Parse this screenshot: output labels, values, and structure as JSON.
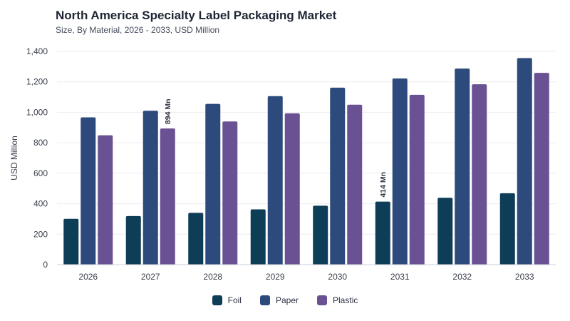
{
  "chart_data": {
    "type": "bar",
    "title": "North America Specialty Label Packaging Market",
    "subtitle": "Size, By Material, 2026 - 2033, USD Million",
    "ylabel": "USD Million",
    "xlabel": "",
    "ylim": [
      0,
      1400
    ],
    "yticks": [
      "0",
      "200",
      "400",
      "600",
      "800",
      "1,000",
      "1,200",
      "1,400"
    ],
    "categories": [
      "2026",
      "2027",
      "2028",
      "2029",
      "2030",
      "2031",
      "2032",
      "2033"
    ],
    "series": [
      {
        "name": "Foil",
        "color": "#0e3d57",
        "values": [
          301,
          319,
          340,
          363,
          387,
          414,
          439,
          469
        ]
      },
      {
        "name": "Paper",
        "color": "#2d4a7c",
        "values": [
          967,
          1010,
          1055,
          1106,
          1162,
          1222,
          1287,
          1356
        ]
      },
      {
        "name": "Plastic",
        "color": "#6a5193",
        "values": [
          849,
          894,
          940,
          993,
          1050,
          1115,
          1184,
          1259
        ]
      }
    ],
    "annotations": [
      {
        "text": "894 Mn",
        "series": 2,
        "category": 1
      },
      {
        "text": "414 Mn",
        "series": 0,
        "category": 5
      }
    ],
    "grid": true,
    "legend": "bottom-center"
  }
}
